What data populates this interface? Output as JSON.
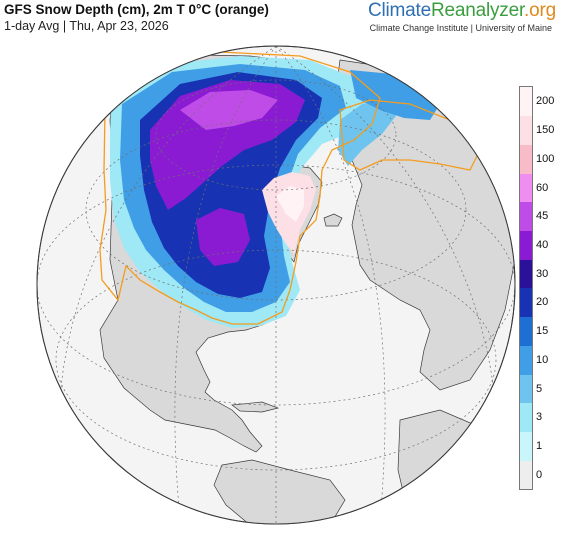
{
  "header": {
    "title": "GFS Snow Depth (cm), 2m T 0°C (orange)",
    "subtitle": "1-day Avg | Thu, Apr 23, 2026"
  },
  "brand": {
    "part1": "Climate",
    "part2": "Reanalyzer",
    "part3": ".org",
    "tagline": "Climate Change Institute | University of Maine"
  },
  "colors": {
    "ocean": "#f4f4f4",
    "land": "#d9d9d9",
    "freezing_line": "#f39c1f",
    "graticule": "#6f6f6f",
    "border": "#555555"
  },
  "legend": {
    "title": "",
    "bins": [
      {
        "label": "0",
        "color": "#eeeeee"
      },
      {
        "label": "1",
        "color": "#c8f6fa"
      },
      {
        "label": "3",
        "color": "#9fe8f5"
      },
      {
        "label": "5",
        "color": "#6fc4ef"
      },
      {
        "label": "10",
        "color": "#3f9ee6"
      },
      {
        "label": "15",
        "color": "#1e6fd3"
      },
      {
        "label": "20",
        "color": "#1733b3"
      },
      {
        "label": "30",
        "color": "#2b109a"
      },
      {
        "label": "40",
        "color": "#8a1bd3"
      },
      {
        "label": "45",
        "color": "#c04ce8"
      },
      {
        "label": "60",
        "color": "#f08df0"
      },
      {
        "label": "100",
        "color": "#f7bcc8"
      },
      {
        "label": "150",
        "color": "#fce0e6"
      },
      {
        "label": "200",
        "color": "#fff3f6"
      }
    ]
  }
}
